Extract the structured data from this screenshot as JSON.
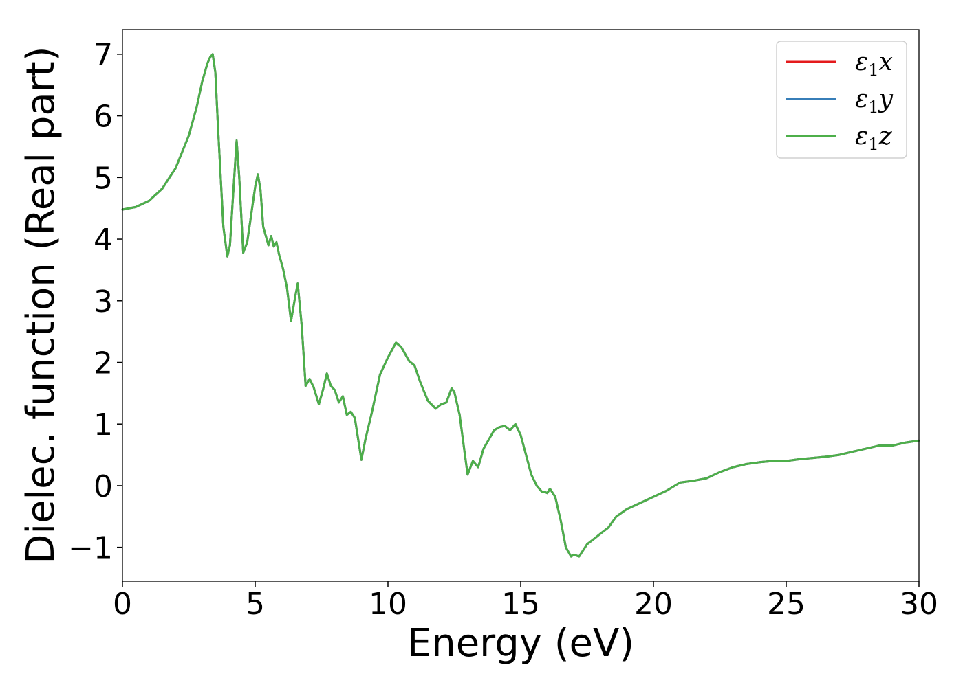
{
  "chart_data": {
    "type": "line",
    "title": "",
    "xlabel": "Energy (eV)",
    "ylabel": "Dielec. function (Real part)",
    "xlim": [
      0,
      30
    ],
    "ylim": [
      -1.55,
      7.4
    ],
    "xticks": [
      0,
      5,
      10,
      15,
      20,
      25,
      30
    ],
    "xtick_labels": [
      "0",
      "5",
      "10",
      "15",
      "20",
      "25",
      "30"
    ],
    "yticks": [
      -1,
      0,
      1,
      2,
      3,
      4,
      5,
      6,
      7
    ],
    "ytick_labels": [
      "−1",
      "0",
      "1",
      "2",
      "3",
      "4",
      "5",
      "6",
      "7"
    ],
    "grid": false,
    "legend_position": "top-right",
    "series": [
      {
        "name": "ε1x",
        "legend_base": "ε",
        "legend_sub": "1",
        "legend_var": "x",
        "color": "#e41a1c"
      },
      {
        "name": "ε1y",
        "legend_base": "ε",
        "legend_sub": "1",
        "legend_var": "y",
        "color": "#377eb8"
      },
      {
        "name": "ε1z",
        "legend_base": "ε",
        "legend_sub": "1",
        "legend_var": "z",
        "color": "#4daf4a"
      }
    ],
    "x": [
      0,
      0.5,
      1.0,
      1.5,
      2.0,
      2.5,
      2.8,
      3.0,
      3.2,
      3.3,
      3.4,
      3.5,
      3.6,
      3.8,
      3.95,
      4.05,
      4.15,
      4.3,
      4.4,
      4.55,
      4.7,
      4.85,
      5.0,
      5.1,
      5.2,
      5.3,
      5.5,
      5.6,
      5.7,
      5.8,
      5.9,
      6.05,
      6.2,
      6.35,
      6.5,
      6.6,
      6.75,
      6.9,
      7.05,
      7.2,
      7.4,
      7.55,
      7.7,
      7.85,
      8.0,
      8.15,
      8.3,
      8.45,
      8.6,
      8.75,
      9.0,
      9.15,
      9.4,
      9.7,
      10.0,
      10.3,
      10.5,
      10.8,
      11.0,
      11.2,
      11.5,
      11.8,
      12.0,
      12.2,
      12.4,
      12.5,
      12.7,
      12.9,
      13.0,
      13.2,
      13.4,
      13.6,
      13.8,
      14.0,
      14.2,
      14.4,
      14.6,
      14.8,
      15.0,
      15.2,
      15.4,
      15.6,
      15.8,
      15.9,
      16.0,
      16.1,
      16.3,
      16.5,
      16.7,
      16.9,
      17.0,
      17.2,
      17.5,
      17.8,
      18.0,
      18.3,
      18.6,
      19.0,
      19.5,
      20.0,
      20.5,
      21.0,
      21.5,
      22.0,
      22.5,
      23.0,
      23.5,
      24.0,
      24.5,
      25.0,
      25.5,
      26.0,
      26.5,
      27.0,
      27.5,
      28.0,
      28.5,
      29.0,
      29.5,
      30.0
    ],
    "y": [
      4.48,
      4.52,
      4.62,
      4.82,
      5.15,
      5.68,
      6.15,
      6.55,
      6.85,
      6.95,
      7.0,
      6.7,
      5.8,
      4.2,
      3.72,
      3.9,
      4.6,
      5.6,
      5.0,
      3.78,
      3.95,
      4.4,
      4.85,
      5.05,
      4.8,
      4.2,
      3.9,
      4.05,
      3.88,
      3.95,
      3.75,
      3.52,
      3.2,
      2.67,
      3.05,
      3.28,
      2.6,
      1.62,
      1.73,
      1.6,
      1.32,
      1.55,
      1.82,
      1.62,
      1.55,
      1.35,
      1.45,
      1.15,
      1.2,
      1.1,
      0.42,
      0.75,
      1.2,
      1.8,
      2.08,
      2.32,
      2.25,
      2.02,
      1.95,
      1.7,
      1.38,
      1.25,
      1.32,
      1.35,
      1.58,
      1.52,
      1.15,
      0.5,
      0.18,
      0.4,
      0.3,
      0.6,
      0.75,
      0.9,
      0.95,
      0.97,
      0.9,
      1.0,
      0.82,
      0.5,
      0.18,
      0.0,
      -0.1,
      -0.1,
      -0.12,
      -0.05,
      -0.18,
      -0.55,
      -1.0,
      -1.15,
      -1.12,
      -1.15,
      -0.95,
      -0.85,
      -0.78,
      -0.68,
      -0.5,
      -0.38,
      -0.28,
      -0.18,
      -0.08,
      0.05,
      0.08,
      0.12,
      0.22,
      0.3,
      0.35,
      0.38,
      0.4,
      0.4,
      0.43,
      0.45,
      0.47,
      0.5,
      0.55,
      0.6,
      0.65,
      0.65,
      0.7,
      0.73
    ]
  }
}
